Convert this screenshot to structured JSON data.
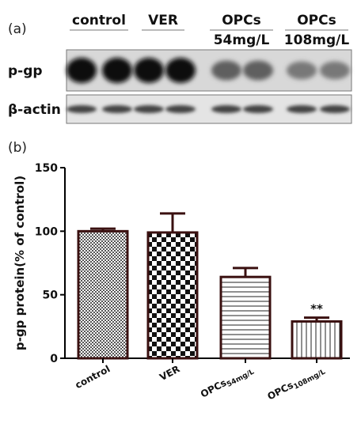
{
  "panel_a": {
    "label": "(a)",
    "groups": [
      {
        "name": "control",
        "sub": ""
      },
      {
        "name": "VER",
        "sub": ""
      },
      {
        "name": "OPCs",
        "sub": "54mg/L"
      },
      {
        "name": "OPCs",
        "sub": "108mg/L"
      }
    ],
    "rows": [
      {
        "label": "p-gp",
        "intensity": [
          1.0,
          0.98,
          0.55,
          0.42
        ]
      },
      {
        "label": "β-actin",
        "intensity": [
          0.7,
          0.7,
          0.7,
          0.7
        ]
      }
    ]
  },
  "chart_data": {
    "type": "bar",
    "panel_label": "(b)",
    "categories": [
      {
        "main": "control",
        "sub": ""
      },
      {
        "main": "VER",
        "sub": ""
      },
      {
        "main": "OPCs",
        "sub": "54mg/L"
      },
      {
        "main": "OPCs",
        "sub": "108mg/L"
      }
    ],
    "values": [
      100,
      99,
      64,
      29
    ],
    "errors": [
      2,
      15,
      7,
      3
    ],
    "significance": [
      "",
      "",
      "",
      "**"
    ],
    "ylabel": "p-gp protein(% of control)",
    "ylim": [
      0,
      150
    ],
    "yticks": [
      0,
      50,
      100,
      150
    ],
    "patterns": [
      "fine-check",
      "coarse-check",
      "horizontal-lines",
      "vertical-lines"
    ]
  }
}
